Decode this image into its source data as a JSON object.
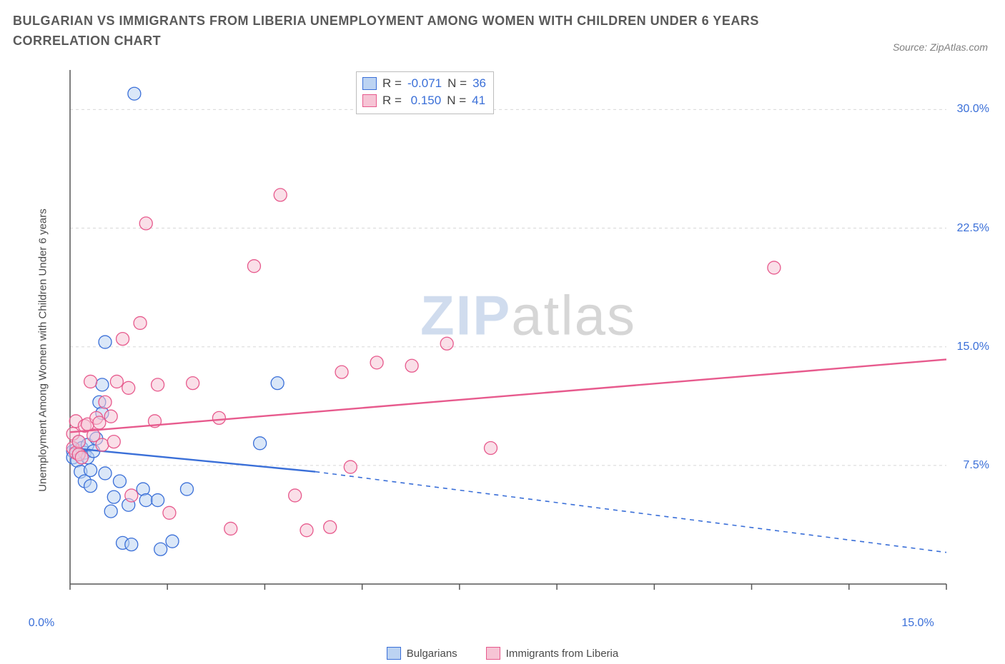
{
  "title": "BULGARIAN VS IMMIGRANTS FROM LIBERIA UNEMPLOYMENT AMONG WOMEN WITH CHILDREN UNDER 6 YEARS CORRELATION CHART",
  "source": "Source: ZipAtlas.com",
  "ylabel": "Unemployment Among Women with Children Under 6 years",
  "watermark": {
    "a": "ZIP",
    "b": "atlas"
  },
  "chart": {
    "type": "scatter_with_regression",
    "background_color": "#ffffff",
    "axis_color": "#575757",
    "grid_color": "#d8d8d8",
    "tick_font_color": "#3a6fd8",
    "tick_font_size": 16,
    "label_font_size": 15,
    "xlim": [
      0,
      15
    ],
    "ylim": [
      0,
      32.5
    ],
    "x_ticks": [
      0,
      1.666,
      3.333,
      5.0,
      6.666,
      8.333,
      10.0,
      11.666,
      13.333,
      15.0
    ],
    "x_tick_labels": {
      "0": "0.0%",
      "15": "15.0%"
    },
    "y_grid": [
      7.5,
      15.0,
      22.5,
      30.0
    ],
    "y_tick_labels": {
      "7.5": "7.5%",
      "15.0": "15.0%",
      "22.5": "22.5%",
      "30.0": "30.0%"
    },
    "marker_radius": 9,
    "marker_stroke_width": 1.3,
    "line_width": 2.4,
    "series": [
      {
        "key": "bulgarians",
        "name": "Bulgarians",
        "stroke": "#3a6fd8",
        "fill": "#bcd3f2",
        "fill_opacity": 0.55,
        "R": "-0.071",
        "N": "36",
        "regression": {
          "x1": 0,
          "y1": 8.6,
          "x2": 4.2,
          "y2": 7.1,
          "dash_x2": 15.0,
          "dash_y2": 2.0
        },
        "points": [
          [
            0.05,
            8.4
          ],
          [
            0.05,
            8.0
          ],
          [
            0.1,
            8.5
          ],
          [
            0.12,
            7.8
          ],
          [
            0.15,
            9.0
          ],
          [
            0.15,
            8.2
          ],
          [
            0.18,
            7.1
          ],
          [
            0.2,
            8.6
          ],
          [
            0.25,
            8.3
          ],
          [
            0.25,
            6.5
          ],
          [
            0.3,
            8.8
          ],
          [
            0.3,
            8.0
          ],
          [
            0.35,
            7.2
          ],
          [
            0.35,
            6.2
          ],
          [
            0.4,
            8.4
          ],
          [
            0.45,
            9.2
          ],
          [
            0.5,
            11.5
          ],
          [
            0.55,
            10.8
          ],
          [
            0.55,
            12.6
          ],
          [
            0.6,
            7.0
          ],
          [
            0.6,
            15.3
          ],
          [
            0.7,
            4.6
          ],
          [
            0.75,
            5.5
          ],
          [
            0.85,
            6.5
          ],
          [
            0.9,
            2.6
          ],
          [
            1.0,
            5.0
          ],
          [
            1.05,
            2.5
          ],
          [
            1.1,
            31.0
          ],
          [
            1.25,
            6.0
          ],
          [
            1.3,
            5.3
          ],
          [
            1.5,
            5.3
          ],
          [
            1.55,
            2.2
          ],
          [
            1.75,
            2.7
          ],
          [
            2.0,
            6.0
          ],
          [
            3.25,
            8.9
          ],
          [
            3.55,
            12.7
          ]
        ]
      },
      {
        "key": "liberia",
        "name": "Immigrants from Liberia",
        "stroke": "#e75a8d",
        "fill": "#f6c4d5",
        "fill_opacity": 0.55,
        "R": "0.150",
        "N": "41",
        "regression": {
          "x1": 0,
          "y1": 9.6,
          "x2": 15.0,
          "y2": 14.2
        },
        "points": [
          [
            0.05,
            8.6
          ],
          [
            0.05,
            9.5
          ],
          [
            0.1,
            8.3
          ],
          [
            0.1,
            10.3
          ],
          [
            0.15,
            8.2
          ],
          [
            0.15,
            9.0
          ],
          [
            0.2,
            8.0
          ],
          [
            0.25,
            10.0
          ],
          [
            0.3,
            10.1
          ],
          [
            0.35,
            12.8
          ],
          [
            0.4,
            9.4
          ],
          [
            0.45,
            10.5
          ],
          [
            0.5,
            10.2
          ],
          [
            0.55,
            8.8
          ],
          [
            0.6,
            11.5
          ],
          [
            0.7,
            10.6
          ],
          [
            0.75,
            9.0
          ],
          [
            0.8,
            12.8
          ],
          [
            0.9,
            15.5
          ],
          [
            1.0,
            12.4
          ],
          [
            1.05,
            5.6
          ],
          [
            1.2,
            16.5
          ],
          [
            1.3,
            22.8
          ],
          [
            1.45,
            10.3
          ],
          [
            1.5,
            12.6
          ],
          [
            1.7,
            4.5
          ],
          [
            2.1,
            12.7
          ],
          [
            2.55,
            10.5
          ],
          [
            2.75,
            3.5
          ],
          [
            3.15,
            20.1
          ],
          [
            3.6,
            24.6
          ],
          [
            3.85,
            5.6
          ],
          [
            4.05,
            3.4
          ],
          [
            4.45,
            3.6
          ],
          [
            4.65,
            13.4
          ],
          [
            4.8,
            7.4
          ],
          [
            5.25,
            14.0
          ],
          [
            5.85,
            13.8
          ],
          [
            6.45,
            15.2
          ],
          [
            7.2,
            8.6
          ],
          [
            12.05,
            20.0
          ]
        ]
      }
    ],
    "rn_legend_header": {
      "R": "R =",
      "N": "N ="
    },
    "bottom_legend": [
      "Bulgarians",
      "Immigrants from Liberia"
    ]
  }
}
